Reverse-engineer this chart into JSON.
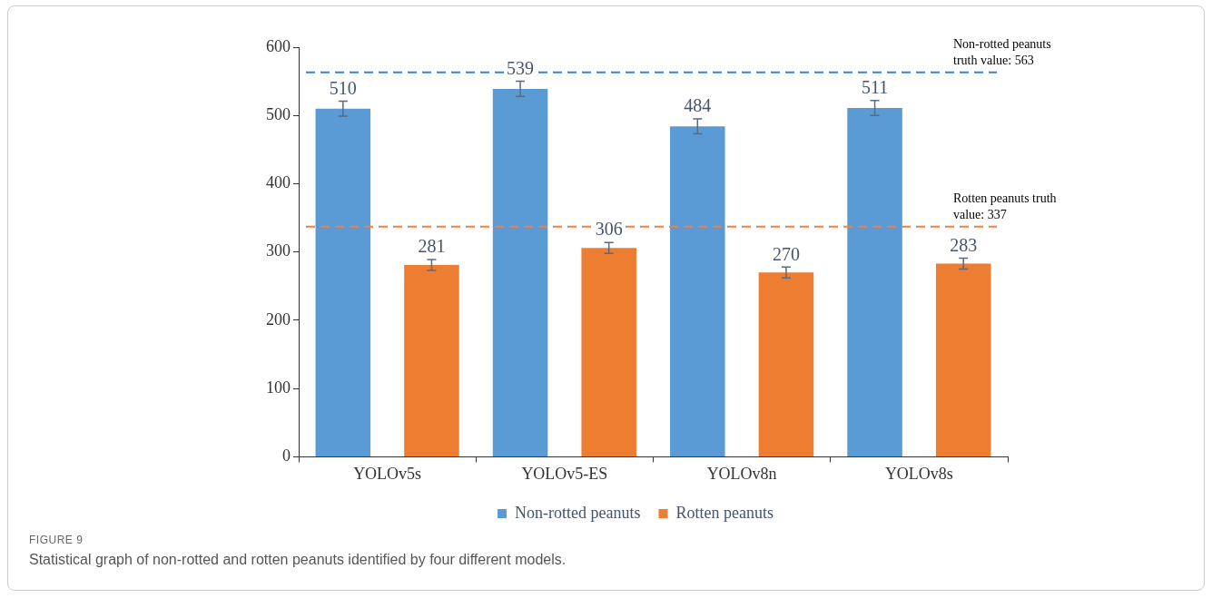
{
  "chart_data": {
    "type": "bar",
    "categories": [
      "YOLOv5s",
      "YOLOv5-ES",
      "YOLOv8n",
      "YOLOv8s"
    ],
    "series": [
      {
        "name": "Non-rotted peanuts",
        "color": "#5b9bd5",
        "values": [
          510,
          539,
          484,
          511
        ],
        "errors": [
          11,
          11,
          11,
          11
        ]
      },
      {
        "name": "Rotten peanuts",
        "color": "#ed7d31",
        "values": [
          281,
          306,
          270,
          283
        ],
        "errors": [
          8,
          8,
          8,
          8
        ]
      }
    ],
    "ylim": [
      0,
      600
    ],
    "yticks": [
      0,
      100,
      200,
      300,
      400,
      500,
      600
    ],
    "grid": false,
    "legend": "bottom",
    "data_labels": true,
    "ref_lines": [
      {
        "axis": "y",
        "value": 563,
        "label": "Non-rotted peanuts truth value: 563",
        "color": "#2e86d6",
        "line_style": "dashed"
      },
      {
        "axis": "y",
        "value": 337,
        "label": "Rotten peanuts truth value: 337",
        "color": "#f0803c",
        "line_style": "dashed"
      }
    ],
    "annotations": [
      "FIGURE 9",
      "Statistical graph of non-rotted and rotten peanuts identified by four different models."
    ]
  }
}
